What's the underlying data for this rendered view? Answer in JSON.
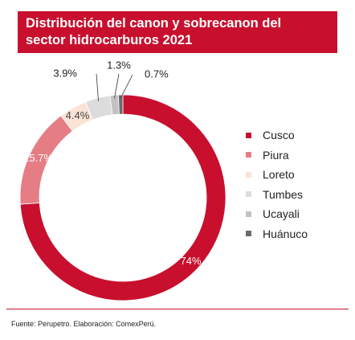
{
  "header": {
    "title_line1": "Distribución del canon y sobrecanon del",
    "title_line2": "sector hidrocarburos 2021"
  },
  "chart_data": {
    "type": "pie",
    "donut": true,
    "title": "Distribución del canon y sobrecanon del sector hidrocarburos 2021",
    "categories": [
      "Cusco",
      "Piura",
      "Loreto",
      "Tumbes",
      "Ucayali",
      "Huánuco"
    ],
    "values": [
      74,
      15.7,
      4.4,
      3.9,
      1.3,
      0.7
    ],
    "value_labels": [
      "74%",
      "15.7%",
      "4.4%",
      "3.9%",
      "1.3%",
      "0.7%"
    ],
    "colors": [
      "#c8102e",
      "#e57d85",
      "#fae3d6",
      "#dcdcdc",
      "#c2c2c2",
      "#6b6b6b"
    ],
    "legend_position": "right"
  },
  "footer": {
    "source": "Fuente: Perupetro. Elaboración: ComexPerú."
  }
}
